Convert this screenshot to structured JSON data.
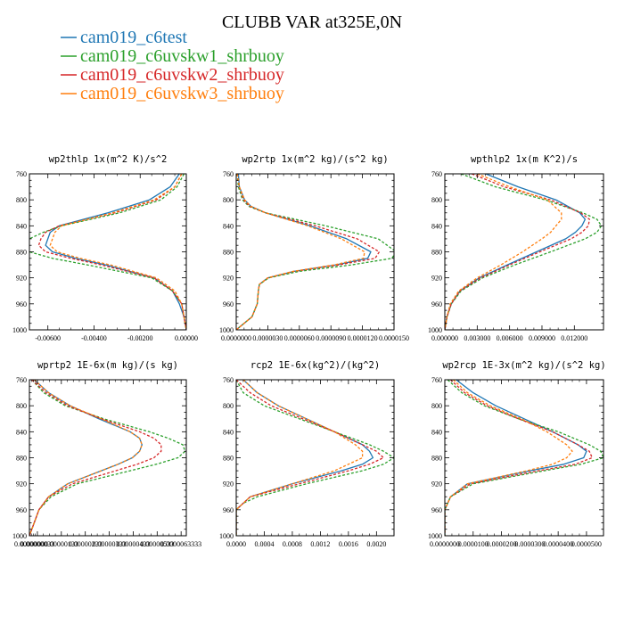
{
  "title": "CLUBB VAR at325E,0N",
  "legend": [
    {
      "name": "cam019_c6test",
      "color": "#1f77b4",
      "dash": "solid"
    },
    {
      "name": "cam019_c6uvskw1_shrbuoy",
      "color": "#2ca02c",
      "dash": "dashed"
    },
    {
      "name": "cam019_c6uvskw2_shrbuoy",
      "color": "#d62728",
      "dash": "dashed"
    },
    {
      "name": "cam019_c6uvskw3_shrbuoy",
      "color": "#ff7f0e",
      "dash": "dashed"
    }
  ],
  "chart_data": [
    {
      "type": "line",
      "title": "wp2thlp  1x(m^2 K)/s^2",
      "xlim": [
        -0.0068,
        0.0
      ],
      "ylim": [
        760,
        1000
      ],
      "y_reversed": true,
      "xticks": [
        -0.006,
        -0.004,
        -0.002,
        0.0
      ],
      "xtick_labels": [
        "-0.00600",
        "-0.00400",
        "-0.00200",
        "0.00000"
      ],
      "yticks": [
        760,
        800,
        840,
        880,
        920,
        960,
        1000
      ],
      "y": [
        760,
        780,
        800,
        820,
        840,
        850,
        860,
        870,
        880,
        890,
        900,
        920,
        940,
        960,
        980,
        1000
      ],
      "series": [
        {
          "name": "cam019_c6test",
          "values": [
            -0.0003,
            -0.0007,
            -0.0016,
            -0.0034,
            -0.0055,
            -0.0059,
            -0.006,
            -0.0061,
            -0.0058,
            -0.0048,
            -0.0035,
            -0.0014,
            -0.0006,
            -0.0003,
            -0.0001,
            0.0
          ]
        },
        {
          "name": "cam019_c6uvskw1_shrbuoy",
          "values": [
            -0.0001,
            -0.0004,
            -0.0011,
            -0.0029,
            -0.0054,
            -0.0062,
            -0.0068,
            -0.0069,
            -0.0068,
            -0.0058,
            -0.0043,
            -0.0015,
            -0.0006,
            -0.0002,
            -0.0001,
            0.0
          ]
        },
        {
          "name": "cam019_c6uvskw2_shrbuoy",
          "values": [
            -0.0002,
            -0.0005,
            -0.0013,
            -0.0031,
            -0.0055,
            -0.0061,
            -0.0063,
            -0.0064,
            -0.0061,
            -0.005,
            -0.0037,
            -0.0014,
            -0.0006,
            -0.0002,
            -0.0001,
            0.0
          ]
        },
        {
          "name": "cam019_c6uvskw3_shrbuoy",
          "values": [
            -0.0002,
            -0.0005,
            -0.0014,
            -0.0032,
            -0.0054,
            -0.0057,
            -0.0058,
            -0.0059,
            -0.0056,
            -0.0046,
            -0.0033,
            -0.0013,
            -0.0005,
            -0.0002,
            -0.0001,
            0.0
          ]
        }
      ]
    },
    {
      "type": "line",
      "title": "wp2rtp  1x(m^2 kg)/(s^2 kg)",
      "xlim": [
        0.0,
        1.5e-05
      ],
      "ylim": [
        760,
        1000
      ],
      "y_reversed": true,
      "xticks": [
        0.0,
        3e-06,
        6e-06,
        9e-06,
        1.2e-05,
        1.5e-05
      ],
      "xtick_labels": [
        "0.0000000",
        "0.0000030",
        "0.0000060",
        "0.0000090",
        "0.0000120",
        "0.0000150"
      ],
      "yticks": [
        760,
        800,
        840,
        880,
        920,
        960,
        1000
      ],
      "y": [
        760,
        780,
        800,
        810,
        820,
        840,
        860,
        880,
        890,
        900,
        910,
        920,
        930,
        940,
        960,
        980,
        1000
      ],
      "series": [
        {
          "name": "cam019_c6test",
          "values": [
            2e-07,
            3e-07,
            8e-07,
            1.4e-06,
            2.8e-06,
            7e-06,
            1.05e-05,
            1.28e-05,
            1.25e-05,
            9.5e-06,
            5.5e-06,
            3e-06,
            2.2e-06,
            2.1e-06,
            2e-06,
            1.5e-06,
            0.0
          ]
        },
        {
          "name": "cam019_c6uvskw1_shrbuoy",
          "values": [
            1e-07,
            2e-07,
            6e-07,
            1.2e-06,
            2.8e-06,
            8.5e-06,
            1.35e-05,
            1.52e-05,
            1.48e-05,
            1.1e-05,
            6e-06,
            3.1e-06,
            2.2e-06,
            2.1e-06,
            2e-06,
            1.5e-06,
            0.0
          ]
        },
        {
          "name": "cam019_c6uvskw2_shrbuoy",
          "values": [
            1e-07,
            3e-07,
            7e-07,
            1.3e-06,
            2.8e-06,
            7.5e-06,
            1.15e-05,
            1.36e-05,
            1.32e-05,
            9.8e-06,
            5.5e-06,
            3e-06,
            2.2e-06,
            2.1e-06,
            2e-06,
            1.5e-06,
            0.0
          ]
        },
        {
          "name": "cam019_c6uvskw3_shrbuoy",
          "values": [
            1e-07,
            3e-07,
            8e-07,
            1.4e-06,
            2.8e-06,
            6.8e-06,
            1e-05,
            1.22e-05,
            1.21e-05,
            9.3e-06,
            5.4e-06,
            3e-06,
            2.2e-06,
            2.1e-06,
            2e-06,
            1.5e-06,
            0.0
          ]
        }
      ]
    },
    {
      "type": "line",
      "title": "wpthlp2  1x(m K^2)/s",
      "xlim": [
        0.0,
        0.0147
      ],
      "ylim": [
        760,
        1000
      ],
      "y_reversed": true,
      "xticks": [
        0.0,
        0.003,
        0.006,
        0.009,
        0.012
      ],
      "xtick_labels": [
        "0.000000",
        "0.003000",
        "0.006000",
        "0.009000",
        "0.012000"
      ],
      "yticks": [
        760,
        800,
        840,
        880,
        920,
        960,
        1000
      ],
      "y": [
        760,
        780,
        800,
        820,
        830,
        840,
        850,
        860,
        880,
        900,
        920,
        940,
        960,
        980,
        1000
      ],
      "series": [
        {
          "name": "cam019_c6test",
          "values": [
            0.0038,
            0.0068,
            0.0103,
            0.0125,
            0.013,
            0.0127,
            0.0121,
            0.0112,
            0.0085,
            0.0058,
            0.0032,
            0.0014,
            0.0006,
            0.0002,
            0.0
          ]
        },
        {
          "name": "cam019_c6uvskw1_shrbuoy",
          "values": [
            0.0015,
            0.0047,
            0.0093,
            0.0128,
            0.0141,
            0.0145,
            0.0141,
            0.013,
            0.0098,
            0.0065,
            0.0035,
            0.0015,
            0.0006,
            0.0002,
            0.0
          ]
        },
        {
          "name": "cam019_c6uvskw2_shrbuoy",
          "values": [
            0.0025,
            0.0055,
            0.0098,
            0.0126,
            0.0134,
            0.0133,
            0.0127,
            0.0117,
            0.0088,
            0.006,
            0.0033,
            0.0014,
            0.0006,
            0.0002,
            0.0
          ]
        },
        {
          "name": "cam019_c6uvskw3_shrbuoy",
          "values": [
            0.003,
            0.006,
            0.0095,
            0.0108,
            0.0108,
            0.0103,
            0.0098,
            0.009,
            0.0072,
            0.0052,
            0.003,
            0.0013,
            0.0005,
            0.0002,
            0.0
          ]
        }
      ]
    },
    {
      "type": "line",
      "title": "wprtp2  1E-6x(m kg)/(s kg)",
      "xlim": [
        0.0,
        6.55e-06
      ],
      "ylim": [
        760,
        1000
      ],
      "y_reversed": true,
      "xticks": [
        0.0,
        3.33e-07,
        1.333e-06,
        2.333e-06,
        3.333e-06,
        4.333e-06,
        5.333e-06,
        6.3333e-06
      ],
      "xtick_labels": [
        "0.0000000",
        "0.00000033",
        "0.00000133",
        "0.00000233",
        "0.00000333",
        "0.00000433",
        "0.00000533",
        "0.0000063333"
      ],
      "yticks": [
        760,
        800,
        840,
        880,
        920,
        960,
        1000
      ],
      "y": [
        760,
        780,
        800,
        820,
        840,
        850,
        860,
        870,
        880,
        890,
        900,
        920,
        940,
        960,
        980,
        1000
      ],
      "series": [
        {
          "name": "cam019_c6test",
          "values": [
            2e-07,
            8e-07,
            1.7e-06,
            2.9e-06,
            4.2e-06,
            4.6e-06,
            4.7e-06,
            4.6e-06,
            4.3e-06,
            3.7e-06,
            3e-06,
            1.6e-06,
            8e-07,
            4e-07,
            2e-07,
            0.0
          ]
        },
        {
          "name": "cam019_c6uvskw1_shrbuoy",
          "values": [
            1e-07,
            6e-07,
            1.5e-06,
            3.1e-06,
            5e-06,
            5.8e-06,
            6.4e-06,
            6.5e-06,
            6.2e-06,
            5.3e-06,
            4.2e-06,
            2e-06,
            9e-07,
            4e-07,
            2e-07,
            0.0
          ]
        },
        {
          "name": "cam019_c6uvskw2_shrbuoy",
          "values": [
            1e-07,
            7e-07,
            1.6e-06,
            3e-06,
            4.6e-06,
            5.2e-06,
            5.5e-06,
            5.5e-06,
            5.2e-06,
            4.5e-06,
            3.6e-06,
            1.8e-06,
            8e-07,
            4e-07,
            2e-07,
            0.0
          ]
        },
        {
          "name": "cam019_c6uvskw3_shrbuoy",
          "values": [
            2e-07,
            8e-07,
            1.7e-06,
            3e-06,
            4.2e-06,
            4.6e-06,
            4.7e-06,
            4.6e-06,
            4.3e-06,
            3.7e-06,
            3e-06,
            1.6e-06,
            8e-07,
            4e-07,
            2e-07,
            0.0
          ]
        }
      ]
    },
    {
      "type": "line",
      "title": "rcp2  1E-6x(kg^2)/(kg^2)",
      "xlim": [
        0.0,
        0.00225
      ],
      "ylim": [
        760,
        1000
      ],
      "y_reversed": true,
      "xticks": [
        0.0,
        0.0004,
        0.0008,
        0.0012,
        0.0016,
        0.002
      ],
      "xtick_labels": [
        "0.0000",
        "0.0004",
        "0.0008",
        "0.0012",
        "0.0016",
        "0.0020"
      ],
      "yticks": [
        760,
        800,
        840,
        880,
        920,
        960,
        1000
      ],
      "y": [
        760,
        780,
        800,
        820,
        840,
        860,
        870,
        880,
        890,
        900,
        920,
        940,
        950,
        960,
        980,
        1000
      ],
      "series": [
        {
          "name": "cam019_c6test",
          "values": [
            0.0001,
            0.0003,
            0.0006,
            0.001,
            0.0014,
            0.0018,
            0.0019,
            0.00195,
            0.0018,
            0.0015,
            0.0008,
            0.0002,
            0.0001,
            0.0,
            0.0,
            0.0
          ]
        },
        {
          "name": "cam019_c6uvskw1_shrbuoy",
          "values": [
            0.0,
            0.0001,
            0.0004,
            0.0009,
            0.0014,
            0.0019,
            0.0021,
            0.00225,
            0.0021,
            0.0018,
            0.001,
            0.0003,
            0.0001,
            0.0,
            0.0,
            0.0
          ]
        },
        {
          "name": "cam019_c6uvskw2_shrbuoy",
          "values": [
            0.0,
            0.0002,
            0.0005,
            0.00095,
            0.0014,
            0.0018,
            0.002,
            0.0021,
            0.0019,
            0.0016,
            0.0009,
            0.0002,
            0.0001,
            0.0,
            0.0,
            0.0
          ]
        },
        {
          "name": "cam019_c6uvskw3_shrbuoy",
          "values": [
            0.0001,
            0.0003,
            0.0006,
            0.001,
            0.0014,
            0.0017,
            0.0018,
            0.0018,
            0.0016,
            0.0014,
            0.0008,
            0.0002,
            0.0001,
            0.0,
            0.0,
            0.0
          ]
        }
      ]
    },
    {
      "type": "line",
      "title": "wp2rcp  1E-3x(m^2 kg)/(s^2 kg)",
      "xlim": [
        0.0,
        5.6e-05
      ],
      "ylim": [
        760,
        1000
      ],
      "y_reversed": true,
      "xticks": [
        0.0,
        1e-05,
        2e-05,
        3e-05,
        4e-05,
        5e-05
      ],
      "xtick_labels": [
        "0.0000000",
        "0.0000100",
        "0.0000200",
        "0.0000300",
        "0.0000400",
        "0.0000500"
      ],
      "yticks": [
        760,
        800,
        840,
        880,
        920,
        960,
        1000
      ],
      "y": [
        760,
        780,
        800,
        820,
        840,
        860,
        870,
        880,
        890,
        900,
        920,
        940,
        960,
        980,
        1000
      ],
      "series": [
        {
          "name": "cam019_c6test",
          "values": [
            4e-06,
            1e-05,
            1.8e-05,
            2.8e-05,
            3.8e-05,
            4.7e-05,
            5e-05,
            4.9e-05,
            4.2e-05,
            3e-05,
            8e-06,
            2e-06,
            0.0,
            0.0,
            0.0
          ]
        },
        {
          "name": "cam019_c6uvskw1_shrbuoy",
          "values": [
            1e-06,
            6e-06,
            1.4e-05,
            2.6e-05,
            4e-05,
            5.1e-05,
            5.5e-05,
            5.6e-05,
            4.8e-05,
            3.5e-05,
            1e-05,
            2e-06,
            0.0,
            0.0,
            0.0
          ]
        },
        {
          "name": "cam019_c6uvskw2_shrbuoy",
          "values": [
            2e-06,
            7e-06,
            1.5e-05,
            2.6e-05,
            3.8e-05,
            4.7e-05,
            5.1e-05,
            5.2e-05,
            4.6e-05,
            3.3e-05,
            9e-06,
            2e-06,
            0.0,
            0.0,
            0.0
          ]
        },
        {
          "name": "cam019_c6uvskw3_shrbuoy",
          "values": [
            3e-06,
            8e-06,
            1.6e-05,
            2.7e-05,
            3.6e-05,
            4.3e-05,
            4.5e-05,
            4.3e-05,
            3.8e-05,
            2.9e-05,
            8e-06,
            2e-06,
            0.0,
            0.0,
            0.0
          ]
        }
      ]
    }
  ]
}
